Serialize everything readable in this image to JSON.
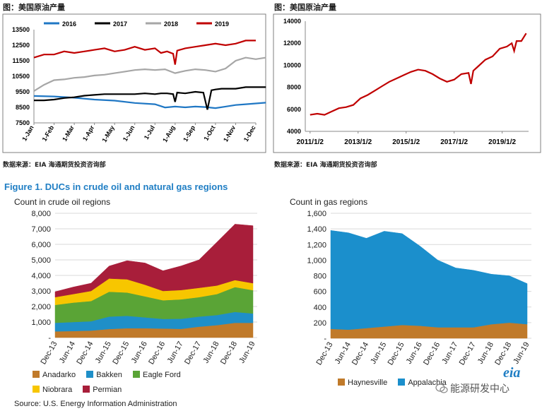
{
  "header": {
    "left_title": "图：美国原油产量",
    "right_title": "图：美国原油产量",
    "left_source": "数据来源：EIA   海通期货投资咨询部",
    "right_source": "数据来源：EIA   海通期货投资咨询部"
  },
  "figure": {
    "title": "Figure 1. DUCs in crude oil and natural gas regions",
    "left_subtitle": "Count in crude oil regions",
    "right_subtitle": "Count in gas regions",
    "source": "Source:  U.S. Energy Information Administration",
    "logo": "eia",
    "watermark": "能源研发中心"
  },
  "colors": {
    "c2016": "#1f77c4",
    "c2017": "#000000",
    "c2018": "#a6a6a6",
    "c2019": "#c00000",
    "anadarko": "#c07a2a",
    "bakken": "#1f8fc8",
    "eagleford": "#5aa436",
    "niobrara": "#f7c600",
    "permian": "#a81e3a",
    "gas": "#1b8fcc",
    "haynesville": "#c07a2a",
    "monthly": "#c00000"
  },
  "chart_data": [
    {
      "type": "line",
      "title": "图：美国原油产量",
      "categories": [
        "1-Jan",
        "1-Feb",
        "1-Mar",
        "1-Apr",
        "1-May",
        "1-Jun",
        "1-Jul",
        "1-Aug",
        "1-Sep",
        "1-Oct",
        "1-Nov",
        "1-Dec"
      ],
      "ylim": [
        7500,
        13500
      ],
      "yticks": [
        7500,
        8500,
        9500,
        10500,
        11500,
        12500,
        13500
      ],
      "legend": "top",
      "series": [
        {
          "name": "2016",
          "x": [
            0,
            1,
            2,
            3,
            4,
            5,
            6,
            6.5,
            7,
            7.5,
            8,
            8.5,
            9,
            9.5,
            10,
            10.5,
            11,
            11.5
          ],
          "values": [
            9230,
            9200,
            9120,
            9000,
            8930,
            8780,
            8700,
            8490,
            8550,
            8500,
            8550,
            8520,
            8450,
            8550,
            8650,
            8700,
            8750,
            8800
          ]
        },
        {
          "name": "2017",
          "x": [
            0,
            0.5,
            1,
            1.5,
            2,
            2.5,
            3,
            3.5,
            4,
            4.5,
            5,
            5.5,
            6,
            6.3,
            6.6,
            6.9,
            7,
            7.1,
            7.5,
            8,
            8.4,
            8.6,
            8.8,
            9,
            9.3,
            9.5,
            9.8,
            10,
            10.5,
            11,
            11.5
          ],
          "values": [
            8950,
            8950,
            9000,
            9100,
            9150,
            9250,
            9300,
            9350,
            9350,
            9350,
            9350,
            9400,
            9350,
            9400,
            9400,
            9350,
            8850,
            9450,
            9400,
            9500,
            9450,
            8350,
            9600,
            9650,
            9700,
            9700,
            9700,
            9700,
            9800,
            9800,
            9800
          ]
        },
        {
          "name": "2018",
          "x": [
            0,
            0.5,
            1,
            1.5,
            2,
            2.5,
            3,
            3.5,
            4,
            4.5,
            5,
            5.5,
            6,
            6.5,
            7,
            7.5,
            8,
            8.5,
            9,
            9.5,
            10,
            10.5,
            11,
            11.5
          ],
          "values": [
            9550,
            9950,
            10250,
            10300,
            10400,
            10450,
            10550,
            10600,
            10700,
            10800,
            10900,
            10950,
            10900,
            10950,
            10700,
            10850,
            10950,
            10900,
            10800,
            11000,
            11500,
            11700,
            11600,
            11700
          ]
        },
        {
          "name": "2019",
          "x": [
            0,
            0.5,
            1,
            1.5,
            2,
            2.5,
            3,
            3.5,
            4,
            4.5,
            5,
            5.5,
            6,
            6.3,
            6.6,
            6.9,
            7,
            7.1,
            7.5,
            8,
            8.5,
            9,
            9.5,
            10,
            10.5,
            11
          ],
          "values": [
            11700,
            11900,
            11900,
            12100,
            12000,
            12100,
            12200,
            12300,
            12100,
            12200,
            12400,
            12200,
            12300,
            12000,
            12100,
            11950,
            11250,
            12150,
            12300,
            12400,
            12500,
            12600,
            12500,
            12600,
            12800,
            12800
          ]
        }
      ]
    },
    {
      "type": "line",
      "title": "图：美国原油产量",
      "x_ticks": [
        "2011/1/2",
        "2013/1/2",
        "2015/1/2",
        "2017/1/2",
        "2019/1/2"
      ],
      "ylim": [
        4000,
        14000
      ],
      "yticks": [
        4000,
        6000,
        8000,
        10000,
        12000,
        14000
      ],
      "series": [
        {
          "x": [
            2011.0,
            2011.3,
            2011.6,
            2011.9,
            2012.2,
            2012.5,
            2012.8,
            2013.1,
            2013.4,
            2013.7,
            2014.0,
            2014.3,
            2014.6,
            2014.9,
            2015.2,
            2015.5,
            2015.8,
            2016.1,
            2016.4,
            2016.7,
            2017.0,
            2017.3,
            2017.6,
            2017.7,
            2017.8,
            2018.0,
            2018.3,
            2018.6,
            2018.9,
            2019.2,
            2019.4,
            2019.5,
            2019.6,
            2019.8,
            2020.0
          ],
          "values": [
            5500,
            5600,
            5500,
            5800,
            6100,
            6200,
            6400,
            7000,
            7300,
            7700,
            8100,
            8500,
            8800,
            9100,
            9400,
            9600,
            9500,
            9200,
            8800,
            8500,
            8700,
            9200,
            9300,
            8300,
            9500,
            9900,
            10500,
            10800,
            11500,
            11700,
            12000,
            11300,
            12200,
            12200,
            12900
          ]
        }
      ]
    },
    {
      "type": "area",
      "title": "Figure 1. DUCs in crude oil and natural gas regions",
      "subtitle": "Count in crude oil regions",
      "x_ticks": [
        "Dec-13",
        "Jun-14",
        "Dec-14",
        "Jun-15",
        "Dec-15",
        "Jun-16",
        "Dec-16",
        "Jun-17",
        "Dec-17",
        "Jun-18",
        "Dec-18",
        "Jun-19"
      ],
      "ylim": [
        0,
        8000
      ],
      "yticks": [
        "-",
        "1,000",
        "2,000",
        "3,000",
        "4,000",
        "5,000",
        "6,000",
        "7,000",
        "8,000"
      ],
      "stacked": true,
      "legend": "bottom",
      "series": [
        {
          "name": "Anadarko",
          "values": [
            400,
            420,
            450,
            550,
            600,
            600,
            580,
            560,
            700,
            800,
            950,
            950
          ]
        },
        {
          "name": "Bakken",
          "values": [
            550,
            580,
            600,
            800,
            800,
            700,
            620,
            650,
            650,
            650,
            700,
            600
          ]
        },
        {
          "name": "Eagle Ford",
          "values": [
            1150,
            1250,
            1300,
            1600,
            1500,
            1350,
            1200,
            1250,
            1250,
            1350,
            1600,
            1500
          ]
        },
        {
          "name": "Niobrara",
          "values": [
            500,
            550,
            650,
            850,
            850,
            750,
            600,
            600,
            600,
            550,
            450,
            450
          ]
        },
        {
          "name": "Permian",
          "values": [
            350,
            450,
            500,
            800,
            1200,
            1400,
            1300,
            1550,
            1800,
            2800,
            3600,
            3700
          ]
        }
      ]
    },
    {
      "type": "area",
      "subtitle": "Count in gas regions",
      "x_ticks": [
        "Dec-13",
        "Jun-14",
        "Dec-14",
        "Jun-15",
        "Dec-15",
        "Jun-16",
        "Dec-16",
        "Jun-17",
        "Dec-17",
        "Jun-18",
        "Dec-18",
        "Jun-19"
      ],
      "ylim": [
        0,
        1600
      ],
      "yticks": [
        "-",
        "200",
        "400",
        "600",
        "800",
        "1,000",
        "1,200",
        "1,400",
        "1,600"
      ],
      "stacked": true,
      "legend": "bottom",
      "series": [
        {
          "name": "Haynesville",
          "values": [
            120,
            110,
            130,
            150,
            170,
            160,
            140,
            140,
            140,
            180,
            200,
            180
          ]
        },
        {
          "name": "Appalachia",
          "values": [
            1260,
            1240,
            1150,
            1220,
            1170,
            1020,
            860,
            760,
            730,
            640,
            600,
            520
          ]
        }
      ]
    }
  ]
}
